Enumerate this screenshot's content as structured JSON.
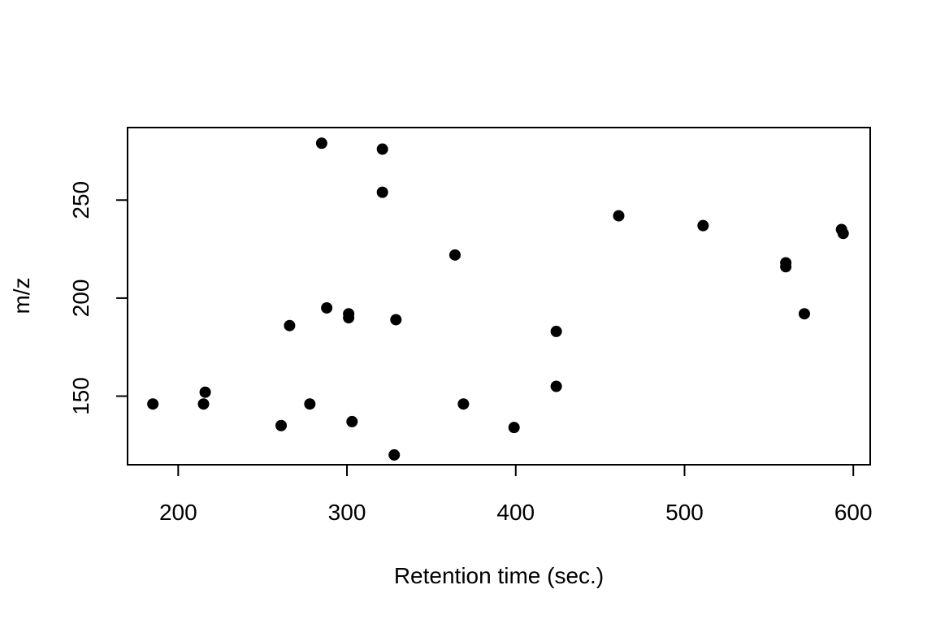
{
  "chart_data": {
    "type": "scatter",
    "title": "",
    "xlabel": "Retention time (sec.)",
    "ylabel": "m/z",
    "xlim": [
      170,
      610
    ],
    "ylim": [
      115,
      287
    ],
    "xticks": [
      200,
      300,
      400,
      500,
      600
    ],
    "yticks": [
      150,
      200,
      250
    ],
    "grid": false,
    "legend": "none",
    "point_color": "#000000",
    "series": [
      {
        "points": [
          {
            "x": 185,
            "y": 146
          },
          {
            "x": 215,
            "y": 146
          },
          {
            "x": 216,
            "y": 152
          },
          {
            "x": 261,
            "y": 135
          },
          {
            "x": 266,
            "y": 186
          },
          {
            "x": 278,
            "y": 146
          },
          {
            "x": 285,
            "y": 279
          },
          {
            "x": 288,
            "y": 195
          },
          {
            "x": 301,
            "y": 192
          },
          {
            "x": 301,
            "y": 190
          },
          {
            "x": 303,
            "y": 137
          },
          {
            "x": 321,
            "y": 276
          },
          {
            "x": 321,
            "y": 254
          },
          {
            "x": 328,
            "y": 120
          },
          {
            "x": 329,
            "y": 189
          },
          {
            "x": 364,
            "y": 222
          },
          {
            "x": 369,
            "y": 146
          },
          {
            "x": 399,
            "y": 134
          },
          {
            "x": 424,
            "y": 183
          },
          {
            "x": 424,
            "y": 155
          },
          {
            "x": 461,
            "y": 242
          },
          {
            "x": 511,
            "y": 237
          },
          {
            "x": 560,
            "y": 218
          },
          {
            "x": 560,
            "y": 216
          },
          {
            "x": 571,
            "y": 192
          },
          {
            "x": 593,
            "y": 235
          },
          {
            "x": 594,
            "y": 233
          }
        ]
      }
    ]
  }
}
